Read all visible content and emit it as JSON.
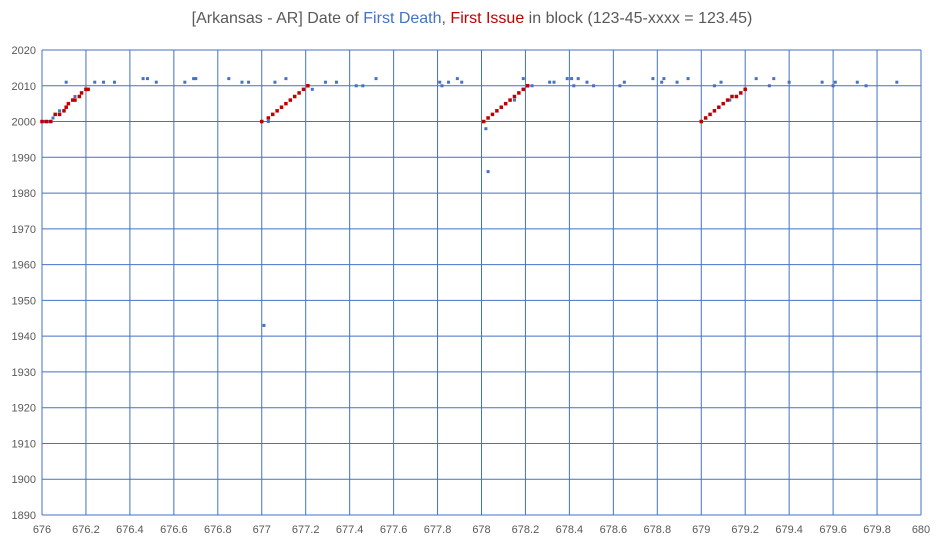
{
  "chart_data": {
    "type": "scatter",
    "title": {
      "prefix": "[Arkansas - AR] Date of ",
      "death_label": "First Death",
      "separator": ", ",
      "issue_label": "First Issue",
      "suffix": " in block (123-45-xxxx = 123.45)"
    },
    "xlim": [
      676,
      680
    ],
    "ylim": [
      1890,
      2020
    ],
    "x_ticks": [
      "676",
      "676.2",
      "676.4",
      "676.6",
      "676.8",
      "677",
      "677.2",
      "677.4",
      "677.6",
      "677.8",
      "678",
      "678.2",
      "678.4",
      "678.6",
      "678.8",
      "679",
      "679.2",
      "679.4",
      "679.6",
      "679.8",
      "680"
    ],
    "y_ticks": [
      "1890",
      "1900",
      "1910",
      "1920",
      "1930",
      "1940",
      "1950",
      "1960",
      "1970",
      "1980",
      "1990",
      "2000",
      "2010",
      "2020"
    ],
    "grid": true,
    "colors": {
      "death": "#4472C4",
      "issue": "#C00000",
      "grid": "#4472C4"
    },
    "series": [
      {
        "name": "First Death",
        "color": "#4472C4",
        "points": [
          [
            676.01,
            2000
          ],
          [
            676.03,
            2000
          ],
          [
            676.05,
            2001
          ],
          [
            676.08,
            2003
          ],
          [
            676.11,
            2011
          ],
          [
            676.15,
            2007
          ],
          [
            676.18,
            2008
          ],
          [
            676.2,
            2009
          ],
          [
            676.24,
            2011
          ],
          [
            676.28,
            2011
          ],
          [
            676.33,
            2011
          ],
          [
            676.46,
            2012
          ],
          [
            676.48,
            2012
          ],
          [
            676.52,
            2011
          ],
          [
            676.65,
            2011
          ],
          [
            676.69,
            2012
          ],
          [
            676.7,
            2012
          ],
          [
            676.85,
            2012
          ],
          [
            676.91,
            2011
          ],
          [
            676.94,
            2011
          ],
          [
            677.01,
            1943
          ],
          [
            677.03,
            2000
          ],
          [
            677.05,
            2002
          ],
          [
            677.06,
            2011
          ],
          [
            677.11,
            2012
          ],
          [
            677.23,
            2009
          ],
          [
            677.29,
            2011
          ],
          [
            677.34,
            2011
          ],
          [
            677.43,
            2010
          ],
          [
            677.46,
            2010
          ],
          [
            677.52,
            2012
          ],
          [
            677.81,
            2011
          ],
          [
            677.82,
            2010
          ],
          [
            677.85,
            2011
          ],
          [
            677.89,
            2012
          ],
          [
            677.91,
            2011
          ],
          [
            678.02,
            1998
          ],
          [
            678.03,
            1986
          ],
          [
            678.11,
            2005
          ],
          [
            678.15,
            2006
          ],
          [
            678.19,
            2012
          ],
          [
            678.23,
            2010
          ],
          [
            678.31,
            2011
          ],
          [
            678.33,
            2011
          ],
          [
            678.39,
            2012
          ],
          [
            678.41,
            2012
          ],
          [
            678.42,
            2010
          ],
          [
            678.44,
            2012
          ],
          [
            678.48,
            2011
          ],
          [
            678.51,
            2010
          ],
          [
            678.63,
            2010
          ],
          [
            678.65,
            2011
          ],
          [
            678.78,
            2012
          ],
          [
            678.82,
            2011
          ],
          [
            678.83,
            2012
          ],
          [
            678.89,
            2011
          ],
          [
            678.94,
            2012
          ],
          [
            679.06,
            2010
          ],
          [
            679.09,
            2011
          ],
          [
            679.13,
            2006
          ],
          [
            679.25,
            2012
          ],
          [
            679.31,
            2010
          ],
          [
            679.33,
            2012
          ],
          [
            679.4,
            2011
          ],
          [
            679.55,
            2011
          ],
          [
            679.6,
            2010
          ],
          [
            679.61,
            2011
          ],
          [
            679.71,
            2011
          ],
          [
            679.75,
            2010
          ],
          [
            679.89,
            2011
          ]
        ]
      },
      {
        "name": "First Issue",
        "color": "#C00000",
        "points": [
          [
            676.0,
            2000
          ],
          [
            676.02,
            2000
          ],
          [
            676.04,
            2000
          ],
          [
            676.06,
            2002
          ],
          [
            676.08,
            2002
          ],
          [
            676.1,
            2003
          ],
          [
            676.11,
            2004
          ],
          [
            676.12,
            2005
          ],
          [
            676.14,
            2006
          ],
          [
            676.15,
            2006
          ],
          [
            676.17,
            2007
          ],
          [
            676.18,
            2008
          ],
          [
            676.2,
            2009
          ],
          [
            676.21,
            2009
          ],
          [
            677.0,
            2000
          ],
          [
            677.03,
            2001
          ],
          [
            677.05,
            2002
          ],
          [
            677.07,
            2003
          ],
          [
            677.09,
            2004
          ],
          [
            677.11,
            2005
          ],
          [
            677.13,
            2006
          ],
          [
            677.15,
            2007
          ],
          [
            677.17,
            2008
          ],
          [
            677.19,
            2009
          ],
          [
            677.21,
            2010
          ],
          [
            678.01,
            2000
          ],
          [
            678.03,
            2001
          ],
          [
            678.05,
            2002
          ],
          [
            678.07,
            2003
          ],
          [
            678.09,
            2004
          ],
          [
            678.11,
            2005
          ],
          [
            678.13,
            2006
          ],
          [
            678.15,
            2007
          ],
          [
            678.17,
            2008
          ],
          [
            678.19,
            2009
          ],
          [
            678.21,
            2010
          ],
          [
            679.0,
            2000
          ],
          [
            679.02,
            2001
          ],
          [
            679.04,
            2002
          ],
          [
            679.06,
            2003
          ],
          [
            679.08,
            2004
          ],
          [
            679.1,
            2005
          ],
          [
            679.12,
            2006
          ],
          [
            679.14,
            2007
          ],
          [
            679.16,
            2007
          ],
          [
            679.18,
            2008
          ],
          [
            679.2,
            2009
          ]
        ]
      }
    ]
  }
}
